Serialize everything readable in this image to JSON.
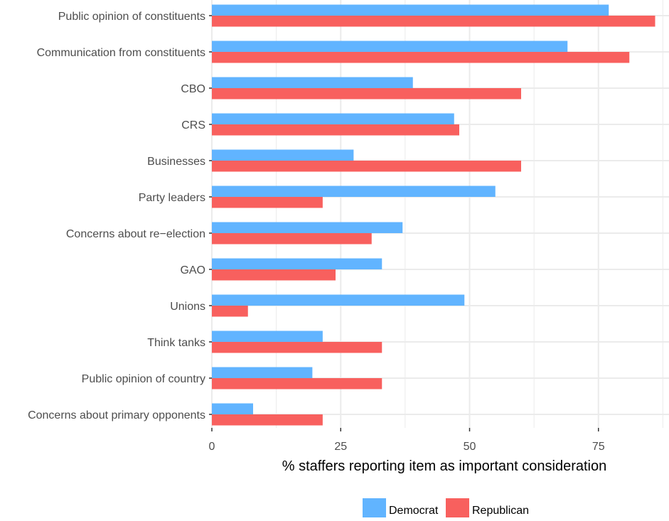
{
  "chart_data": {
    "type": "bar",
    "orientation": "horizontal",
    "xlabel": "% staffers reporting item as important consideration",
    "ylabel": "",
    "xlim": [
      0,
      88
    ],
    "xticks": [
      0,
      25,
      50,
      75
    ],
    "grid": true,
    "legend_position": "bottom",
    "categories": [
      "Public opinion of constituents",
      "Communication from constituents",
      "CBO",
      "CRS",
      "Businesses",
      "Party leaders",
      "Concerns about re−election",
      "GAO",
      "Unions",
      "Think tanks",
      "Public opinion of country",
      "Concerns about primary opponents"
    ],
    "series": [
      {
        "name": "Democrat",
        "color": "#61b4ff",
        "values": [
          77,
          69,
          39,
          47,
          27.5,
          55,
          37,
          33,
          49,
          21.5,
          19.5,
          8
        ]
      },
      {
        "name": "Republican",
        "color": "#f8605e",
        "values": [
          86,
          81,
          60,
          48,
          60,
          21.5,
          31,
          24,
          7,
          33,
          33,
          21.5
        ]
      }
    ]
  }
}
